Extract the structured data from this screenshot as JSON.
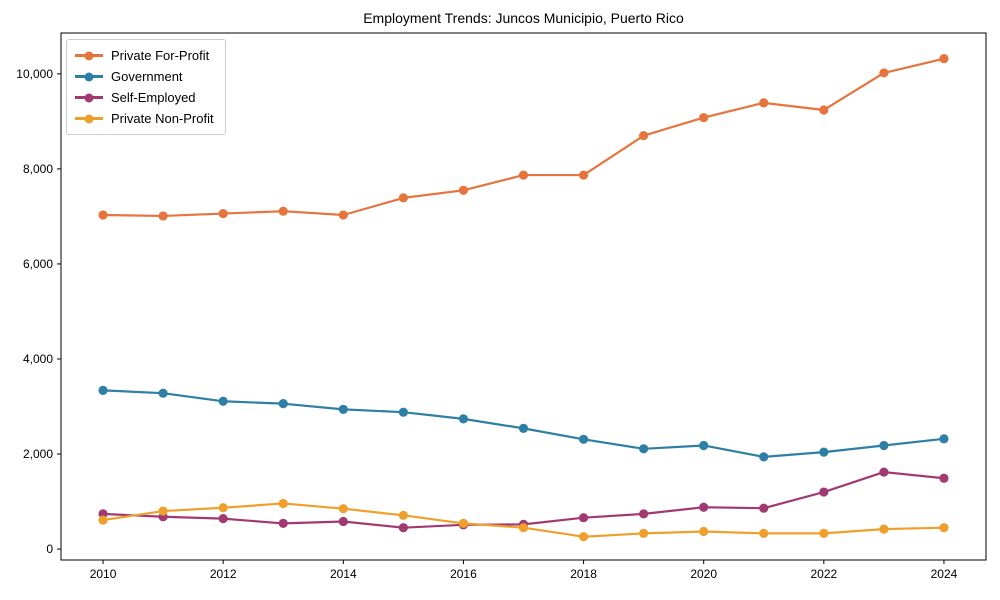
{
  "chart_data": {
    "type": "line",
    "title": "Employment Trends: Juncos Municipio, Puerto Rico",
    "xlabel": "",
    "ylabel": "",
    "x": [
      2010,
      2011,
      2012,
      2013,
      2014,
      2015,
      2016,
      2017,
      2018,
      2019,
      2020,
      2021,
      2022,
      2023,
      2024
    ],
    "series": [
      {
        "name": "Private For-Profit",
        "color": "#e6743d",
        "values": [
          7030,
          7010,
          7060,
          7110,
          7030,
          7390,
          7550,
          7870,
          7870,
          8700,
          9080,
          9390,
          9240,
          10020,
          10320
        ]
      },
      {
        "name": "Government",
        "color": "#2e7fa5",
        "values": [
          3340,
          3280,
          3110,
          3060,
          2940,
          2880,
          2740,
          2540,
          2310,
          2110,
          2180,
          1940,
          2040,
          2180,
          2320
        ]
      },
      {
        "name": "Self-Employed",
        "color": "#a23a72",
        "values": [
          740,
          680,
          640,
          540,
          580,
          450,
          510,
          520,
          660,
          740,
          880,
          860,
          1200,
          1620,
          1490
        ]
      },
      {
        "name": "Private Non-Profit",
        "color": "#efa02c",
        "values": [
          610,
          800,
          870,
          960,
          850,
          710,
          540,
          450,
          260,
          330,
          370,
          330,
          330,
          420,
          450
        ]
      }
    ],
    "x_ticks": [
      2010,
      2012,
      2014,
      2016,
      2018,
      2020,
      2022,
      2024
    ],
    "y_ticks": [
      0,
      2000,
      4000,
      6000,
      8000,
      10000
    ],
    "y_tick_labels": [
      "0",
      "2,000",
      "4,000",
      "6,000",
      "8,000",
      "10,000"
    ],
    "xlim": [
      2009.3,
      2024.7
    ],
    "ylim": [
      -230,
      10860
    ],
    "grid": false,
    "legend_position": "upper-left",
    "marker": "circle",
    "axis_color": "#000000",
    "background": "#ffffff"
  }
}
